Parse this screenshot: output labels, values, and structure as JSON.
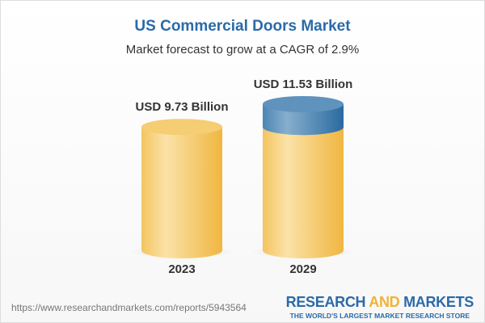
{
  "title": "US Commercial Doors Market",
  "subtitle": "Market forecast to grow at a CAGR of 2.9%",
  "chart_data": {
    "type": "bar",
    "style": "3d-cylinder",
    "categories": [
      "2023",
      "2029"
    ],
    "values": [
      9.73,
      11.53
    ],
    "data_labels": [
      "USD 9.73 Billion",
      "USD 11.53 Billion"
    ],
    "unit": "USD Billion",
    "colors": {
      "base": "#f2c158",
      "growth": "#3f7fb0"
    }
  },
  "footer": {
    "url": "https://www.researchandmarkets.com/reports/5943564",
    "logo_part1": "RESEARCH ",
    "logo_part2": "AND",
    "logo_part3": " MARKETS",
    "tagline": "THE WORLD'S LARGEST MARKET RESEARCH STORE"
  }
}
